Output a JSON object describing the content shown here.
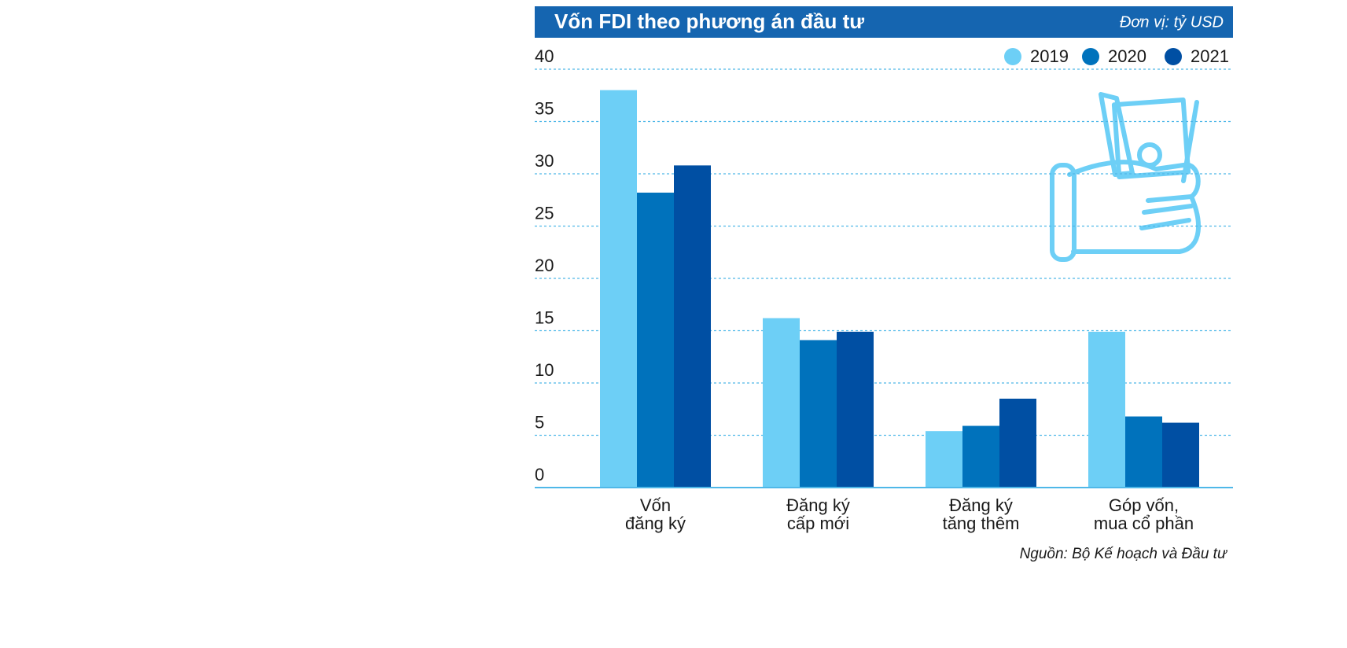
{
  "chart_data": {
    "type": "bar",
    "title": "Vốn FDI theo phương án đầu tư",
    "unit": "Đơn vị: tỷ USD",
    "source": "Nguồn: Bộ Kế hoạch và Đầu tư",
    "categories": [
      [
        "Vốn",
        "đăng ký"
      ],
      [
        "Đăng ký",
        "cấp mới"
      ],
      [
        "Đăng ký",
        "tăng thêm"
      ],
      [
        "Góp vốn,",
        "mua cổ phần"
      ]
    ],
    "series": [
      {
        "name": "2019",
        "color": "#6dcff6",
        "values": [
          38.0,
          16.2,
          5.4,
          14.9
        ]
      },
      {
        "name": "2020",
        "color": "#0072bc",
        "values": [
          28.2,
          14.1,
          5.9,
          6.8
        ]
      },
      {
        "name": "2021",
        "color": "#004fa3",
        "values": [
          30.8,
          14.9,
          8.5,
          6.2
        ]
      }
    ],
    "ylim": [
      0,
      40
    ],
    "yticks": [
      0,
      5,
      10,
      15,
      20,
      25,
      30,
      35,
      40
    ],
    "grid": true
  }
}
